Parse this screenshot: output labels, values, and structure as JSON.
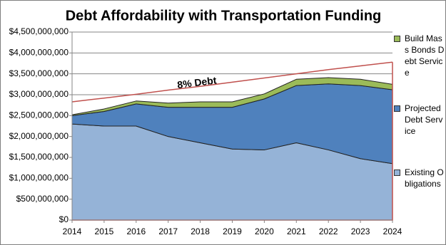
{
  "chart_data": {
    "type": "stacked_area",
    "title": "Debt Affordability with Transportation Funding",
    "x": [
      2014,
      2015,
      2016,
      2017,
      2018,
      2019,
      2020,
      2021,
      2022,
      2023,
      2024
    ],
    "xlim": [
      2014,
      2024
    ],
    "xticks": [
      2014,
      2015,
      2016,
      2017,
      2018,
      2019,
      2020,
      2021,
      2022,
      2023,
      2024
    ],
    "ylim": [
      0,
      4500000000
    ],
    "yticks": [
      {
        "value": 0,
        "label": "$0"
      },
      {
        "value": 500000000,
        "label": "$500,000,000"
      },
      {
        "value": 1000000000,
        "label": "$1,000,000,000"
      },
      {
        "value": 1500000000,
        "label": "$1,500,000,000"
      },
      {
        "value": 2000000000,
        "label": "$2,000,000,000"
      },
      {
        "value": 2500000000,
        "label": "$2,500,000,000"
      },
      {
        "value": 3000000000,
        "label": "$3,000,000,000"
      },
      {
        "value": 3500000000,
        "label": "$3,500,000,000"
      },
      {
        "value": 4000000000,
        "label": "$4,000,000,000"
      },
      {
        "value": 4500000000,
        "label": "$4,500,000,000"
      }
    ],
    "grid": true,
    "legend": "right",
    "series": [
      {
        "name": "Existing Obligations",
        "color": "#95b3d7",
        "values": [
          2300000000,
          2250000000,
          2250000000,
          2000000000,
          1850000000,
          1700000000,
          1680000000,
          1850000000,
          1680000000,
          1470000000,
          1350000000
        ]
      },
      {
        "name": "Projected Debt Service",
        "color": "#4f81bd",
        "values": [
          200000000,
          350000000,
          530000000,
          700000000,
          850000000,
          1000000000,
          1220000000,
          1370000000,
          1580000000,
          1750000000,
          1770000000
        ]
      },
      {
        "name": "Build Mass Bonds Debt Service",
        "color": "#9bbb59",
        "values": [
          20000000,
          60000000,
          70000000,
          100000000,
          130000000,
          130000000,
          120000000,
          150000000,
          150000000,
          150000000,
          130000000
        ]
      }
    ],
    "line_series": {
      "name": "8% Debt",
      "color": "#c0504d",
      "values": [
        2830000000,
        2920000000,
        3010000000,
        3110000000,
        3200000000,
        3300000000,
        3400000000,
        3500000000,
        3600000000,
        3690000000,
        3780000000
      ]
    }
  }
}
